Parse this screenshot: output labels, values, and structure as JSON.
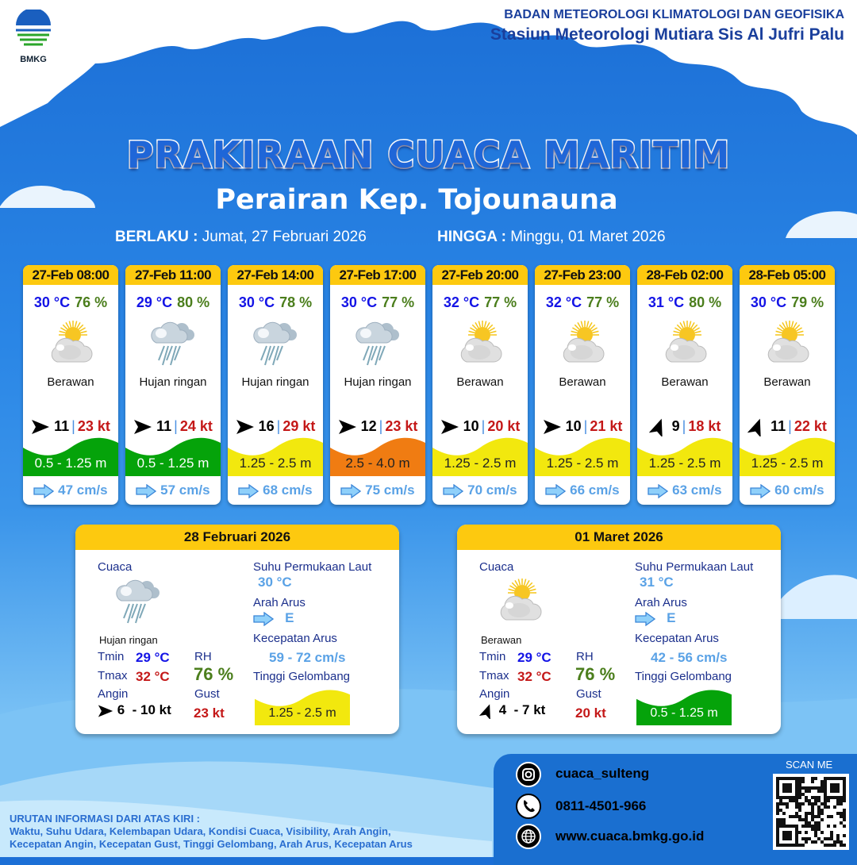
{
  "header": {
    "logo_text": "BMKG",
    "org": "BADAN METEOROLOGI KLIMATOLOGI DAN GEOFISIKA",
    "station": "Stasiun Meteorologi Mutiara Sis Al Jufri Palu"
  },
  "title": "PRAKIRAAN CUACA MARITIM",
  "subtitle": "Perairan Kep. Tojounauna",
  "validity": {
    "from_label": "BERLAKU :",
    "from": "Jumat, 27 Februari 2026",
    "to_label": "HINGGA :",
    "to": "Minggu, 01 Maret 2026"
  },
  "colors": {
    "header_yellow": "#fdc90f",
    "wave_green": "#05a30a",
    "wave_yellow": "#f2e80e",
    "wave_orange": "#f07c12",
    "temp_blue": "#1414e6",
    "humidity_green": "#4b7e1c",
    "gust_red": "#c41818",
    "current_blue": "#5aa2e6"
  },
  "forecasts": [
    {
      "time": "27-Feb 08:00",
      "temp": "30 °C",
      "rh": "76 %",
      "icon": "partly-cloudy-icon",
      "condition": "Berawan",
      "wind_dir": "E",
      "wind": "11",
      "gust": "23 kt",
      "wave": "0.5 - 1.25 m",
      "wave_color": "#05a30a",
      "current": "47 cm/s"
    },
    {
      "time": "27-Feb 11:00",
      "temp": "29 °C",
      "rh": "80 %",
      "icon": "rain-icon",
      "condition": "Hujan ringan",
      "wind_dir": "E",
      "wind": "11",
      "gust": "24 kt",
      "wave": "0.5 - 1.25 m",
      "wave_color": "#05a30a",
      "current": "57 cm/s"
    },
    {
      "time": "27-Feb 14:00",
      "temp": "30 °C",
      "rh": "78 %",
      "icon": "rain-icon",
      "condition": "Hujan ringan",
      "wind_dir": "E",
      "wind": "16",
      "gust": "29 kt",
      "wave": "1.25 - 2.5 m",
      "wave_color": "#f2e80e",
      "current": "68 cm/s"
    },
    {
      "time": "27-Feb 17:00",
      "temp": "30 °C",
      "rh": "77 %",
      "icon": "rain-icon",
      "condition": "Hujan ringan",
      "wind_dir": "E",
      "wind": "12",
      "gust": "23 kt",
      "wave": "2.5 - 4.0 m",
      "wave_color": "#f07c12",
      "current": "75 cm/s"
    },
    {
      "time": "27-Feb 20:00",
      "temp": "32 °C",
      "rh": "77 %",
      "icon": "partly-cloudy-icon",
      "condition": "Berawan",
      "wind_dir": "E",
      "wind": "10",
      "gust": "20 kt",
      "wave": "1.25 - 2.5 m",
      "wave_color": "#f2e80e",
      "current": "70 cm/s"
    },
    {
      "time": "27-Feb 23:00",
      "temp": "32 °C",
      "rh": "77 %",
      "icon": "partly-cloudy-icon",
      "condition": "Berawan",
      "wind_dir": "E",
      "wind": "10",
      "gust": "21 kt",
      "wave": "1.25 - 2.5 m",
      "wave_color": "#f2e80e",
      "current": "66 cm/s"
    },
    {
      "time": "28-Feb 02:00",
      "temp": "31 °C",
      "rh": "80 %",
      "icon": "partly-cloudy-icon",
      "condition": "Berawan",
      "wind_dir": "N",
      "wind": "9",
      "gust": "18 kt",
      "wave": "1.25 - 2.5 m",
      "wave_color": "#f2e80e",
      "current": "63 cm/s"
    },
    {
      "time": "28-Feb 05:00",
      "temp": "30 °C",
      "rh": "79 %",
      "icon": "partly-cloudy-icon",
      "condition": "Berawan",
      "wind_dir": "N",
      "wind": "11",
      "gust": "22 kt",
      "wave": "1.25 - 2.5 m",
      "wave_color": "#f2e80e",
      "current": "60 cm/s"
    }
  ],
  "labels": {
    "weather": "Cuaca",
    "tmin": "Tmin",
    "tmax": "Tmax",
    "rh": "RH",
    "wind": "Angin",
    "gust": "Gust",
    "sst": "Suhu Permukaan Laut",
    "current_dir": "Arah Arus",
    "current_speed": "Kecepatan Arus",
    "wave": "Tinggi Gelombang"
  },
  "daily": [
    {
      "date": "28 Februari 2026",
      "icon": "rain-icon",
      "condition": "Hujan ringan",
      "tmin": "29 °C",
      "tmax": "32 °C",
      "rh": "76 %",
      "wind_dir": "E",
      "wind": "6  - 10 kt",
      "gust": "23 kt",
      "sst": "30 °C",
      "current_dir": "E",
      "current_speed": "59 - 72 cm/s",
      "wave": "1.25 - 2.5 m",
      "wave_color": "#f2e80e"
    },
    {
      "date": "01 Maret 2026",
      "icon": "partly-cloudy-icon",
      "condition": "Berawan",
      "tmin": "29 °C",
      "tmax": "32 °C",
      "rh": "76 %",
      "wind_dir": "N",
      "wind": "4  - 7 kt",
      "gust": "20 kt",
      "sst": "31 °C",
      "current_dir": "E",
      "current_speed": "42 - 56 cm/s",
      "wave": "0.5 - 1.25 m",
      "wave_color": "#05a30a"
    }
  ],
  "footer": {
    "info_title": "URUTAN INFORMASI DARI ATAS KIRI :",
    "info_line1": "Waktu, Suhu Udara, Kelembapan Udara, Kondisi Cuaca, Visibility, Arah Angin,",
    "info_line2": "Kecepatan Angin, Kecepatan Gust, Tinggi Gelombang, Arah Arus, Kecepatan Arus",
    "instagram": "cuaca_sulteng",
    "phone": "0811-4501-966",
    "website": "www.cuaca.bmkg.go.id",
    "scan": "SCAN ME"
  }
}
